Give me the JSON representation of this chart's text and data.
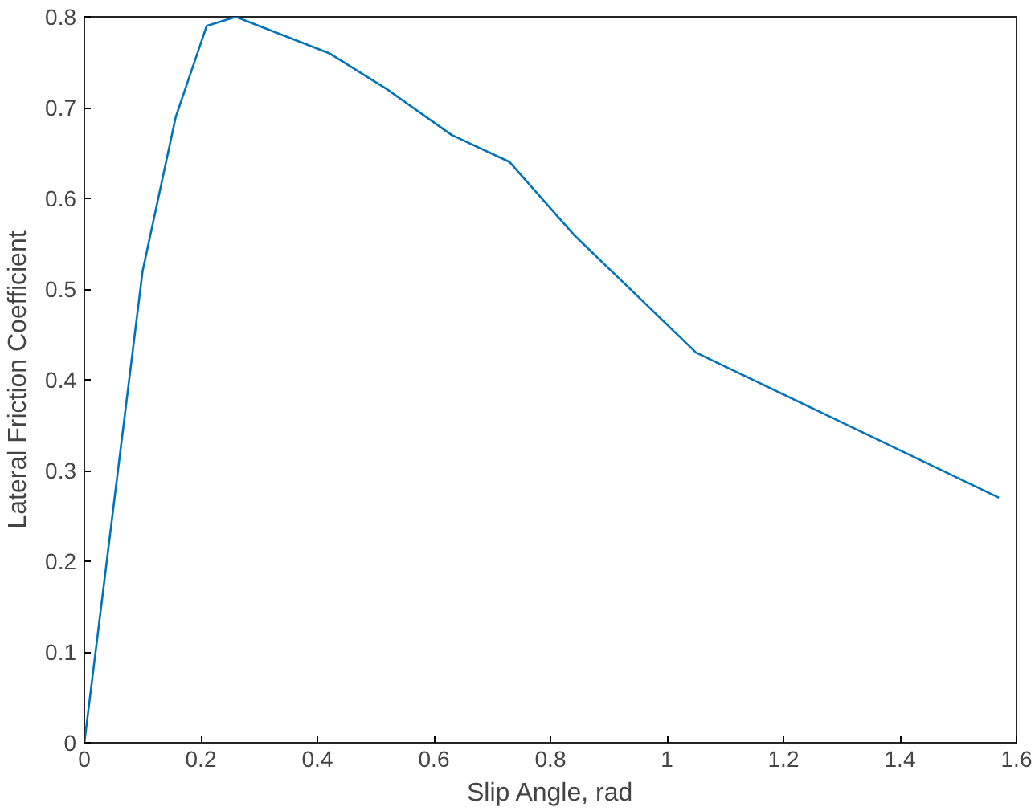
{
  "chart_data": {
    "type": "line",
    "xlabel": "Slip Angle, rad",
    "ylabel": "Lateral Friction Coefficient",
    "x": [
      0,
      0.1,
      0.157,
      0.21,
      0.26,
      0.42,
      0.52,
      0.63,
      0.73,
      0.84,
      1.05,
      1.57
    ],
    "series": [
      {
        "color": "#0072bd",
        "values": [
          0,
          0.52,
          0.69,
          0.79,
          0.8,
          0.76,
          0.72,
          0.67,
          0.64,
          0.56,
          0.43,
          0.27
        ]
      }
    ],
    "xlim": [
      0,
      1.6
    ],
    "ylim": [
      0,
      0.8
    ],
    "xticks": [
      0,
      0.2,
      0.4,
      0.6,
      0.8,
      {
        "value": 1,
        "label": "1"
      },
      1.2,
      1.4,
      1.6
    ],
    "yticks": [
      0,
      0.1,
      0.2,
      0.3,
      0.4,
      0.5,
      0.6,
      0.7,
      0.8
    ],
    "grid": false,
    "marker": "none",
    "line_style": "solid"
  }
}
